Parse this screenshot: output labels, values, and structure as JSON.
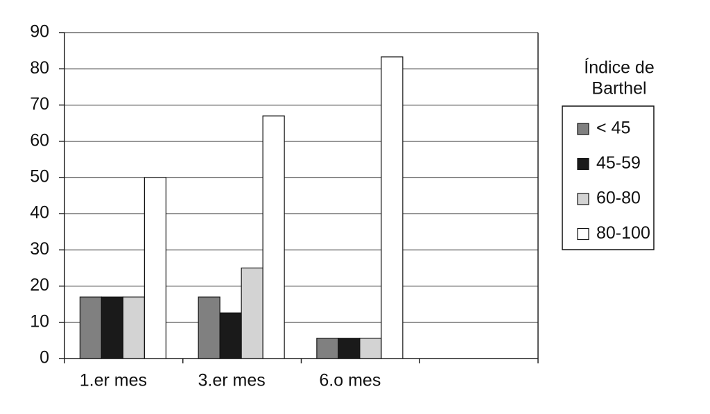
{
  "chart_data": {
    "type": "bar",
    "categories": [
      "1.er mes",
      "3.er mes",
      "6.o mes",
      null
    ],
    "series": [
      {
        "name": "< 45",
        "color": "#808080",
        "values": [
          17,
          17,
          5.6,
          null
        ]
      },
      {
        "name": "45-59",
        "color": "#1a1a1a",
        "values": [
          17,
          12.6,
          5.6,
          null
        ]
      },
      {
        "name": "60-80",
        "color": "#d3d3d3",
        "values": [
          17,
          25,
          5.6,
          null
        ]
      },
      {
        "name": "80-100",
        "color": "#ffffff",
        "values": [
          50,
          67,
          83.3,
          null
        ]
      }
    ],
    "legend_title": [
      "Índice de",
      "Barthel"
    ],
    "ylim": [
      0,
      90
    ],
    "yticks": [
      0,
      10,
      20,
      30,
      40,
      50,
      60,
      70,
      80,
      90
    ],
    "grid": true,
    "legend": "right"
  }
}
